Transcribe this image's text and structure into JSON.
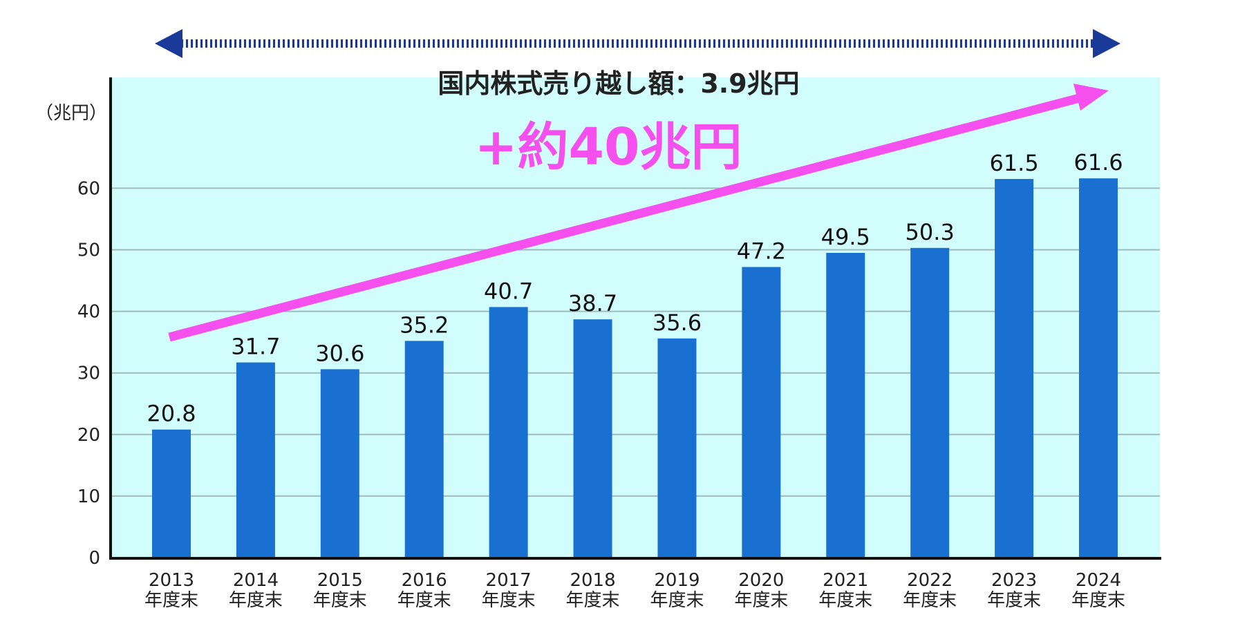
{
  "chart_data": {
    "type": "bar",
    "unit_label": "（兆円）",
    "categories": [
      {
        "year": "2013",
        "suffix": "年度末"
      },
      {
        "year": "2014",
        "suffix": "年度末"
      },
      {
        "year": "2015",
        "suffix": "年度末"
      },
      {
        "year": "2016",
        "suffix": "年度末"
      },
      {
        "year": "2017",
        "suffix": "年度末"
      },
      {
        "year": "2018",
        "suffix": "年度末"
      },
      {
        "year": "2019",
        "suffix": "年度末"
      },
      {
        "year": "2020",
        "suffix": "年度末"
      },
      {
        "year": "2021",
        "suffix": "年度末"
      },
      {
        "year": "2022",
        "suffix": "年度末"
      },
      {
        "year": "2023",
        "suffix": "年度末"
      },
      {
        "year": "2024",
        "suffix": "年度末"
      }
    ],
    "values": [
      20.8,
      31.7,
      30.6,
      35.2,
      40.7,
      38.7,
      35.6,
      47.2,
      49.5,
      50.3,
      61.5,
      61.6
    ],
    "value_labels": [
      "20.8",
      "31.7",
      "30.6",
      "35.2",
      "40.7",
      "38.7",
      "35.6",
      "47.2",
      "49.5",
      "50.3",
      "61.5",
      "61.6"
    ],
    "ylim": [
      0,
      78
    ],
    "yticks": [
      0,
      10,
      20,
      30,
      40,
      50,
      60
    ],
    "grid": true,
    "annotations": {
      "span_label": "国内株式売り越し額：3.9兆円",
      "increase_label": "+約40兆円"
    },
    "colors": {
      "bar": "#1a70d0",
      "plot_bg": "#d2fdfd",
      "grid": "#9fbcbc",
      "span_arrow": "#1a3a9a",
      "trend_arrow": "#f550ee"
    }
  }
}
